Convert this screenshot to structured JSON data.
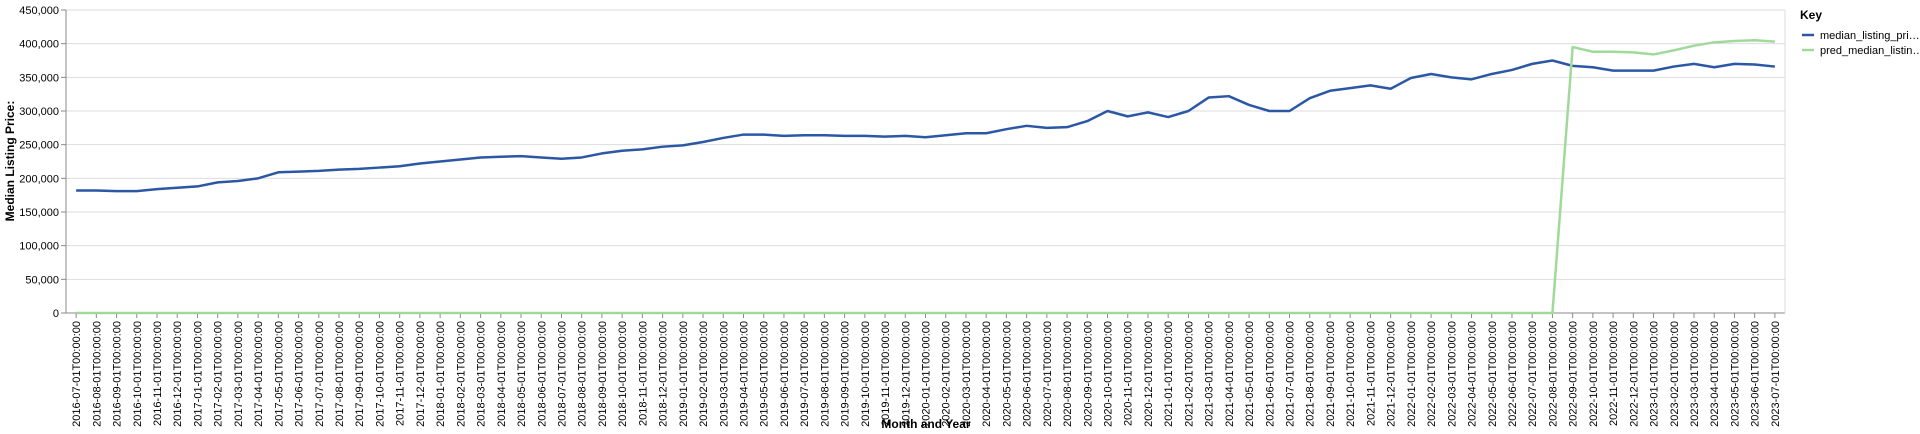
{
  "chart_data": {
    "type": "line",
    "xlabel": "Month and Year",
    "ylabel": "Median Listing Price:",
    "legend_title": "Key",
    "legend_position": "right",
    "grid": true,
    "categories": [
      "2016-07-01T00:00:00",
      "2016-08-01T00:00:00",
      "2016-09-01T00:00:00",
      "2016-10-01T00:00:00",
      "2016-11-01T00:00:00",
      "2016-12-01T00:00:00",
      "2017-01-01T00:00:00",
      "2017-02-01T00:00:00",
      "2017-03-01T00:00:00",
      "2017-04-01T00:00:00",
      "2017-05-01T00:00:00",
      "2017-06-01T00:00:00",
      "2017-07-01T00:00:00",
      "2017-08-01T00:00:00",
      "2017-09-01T00:00:00",
      "2017-10-01T00:00:00",
      "2017-11-01T00:00:00",
      "2017-12-01T00:00:00",
      "2018-01-01T00:00:00",
      "2018-02-01T00:00:00",
      "2018-03-01T00:00:00",
      "2018-04-01T00:00:00",
      "2018-05-01T00:00:00",
      "2018-06-01T00:00:00",
      "2018-07-01T00:00:00",
      "2018-08-01T00:00:00",
      "2018-09-01T00:00:00",
      "2018-10-01T00:00:00",
      "2018-11-01T00:00:00",
      "2018-12-01T00:00:00",
      "2019-01-01T00:00:00",
      "2019-02-01T00:00:00",
      "2019-03-01T00:00:00",
      "2019-04-01T00:00:00",
      "2019-05-01T00:00:00",
      "2019-06-01T00:00:00",
      "2019-07-01T00:00:00",
      "2019-08-01T00:00:00",
      "2019-09-01T00:00:00",
      "2019-10-01T00:00:00",
      "2019-11-01T00:00:00",
      "2019-12-01T00:00:00",
      "2020-01-01T00:00:00",
      "2020-02-01T00:00:00",
      "2020-03-01T00:00:00",
      "2020-04-01T00:00:00",
      "2020-05-01T00:00:00",
      "2020-06-01T00:00:00",
      "2020-07-01T00:00:00",
      "2020-08-01T00:00:00",
      "2020-09-01T00:00:00",
      "2020-10-01T00:00:00",
      "2020-11-01T00:00:00",
      "2020-12-01T00:00:00",
      "2021-01-01T00:00:00",
      "2021-02-01T00:00:00",
      "2021-03-01T00:00:00",
      "2021-04-01T00:00:00",
      "2021-05-01T00:00:00",
      "2021-06-01T00:00:00",
      "2021-07-01T00:00:00",
      "2021-08-01T00:00:00",
      "2021-09-01T00:00:00",
      "2021-10-01T00:00:00",
      "2021-11-01T00:00:00",
      "2021-12-01T00:00:00",
      "2022-01-01T00:00:00",
      "2022-02-01T00:00:00",
      "2022-03-01T00:00:00",
      "2022-04-01T00:00:00",
      "2022-05-01T00:00:00",
      "2022-06-01T00:00:00",
      "2022-07-01T00:00:00",
      "2022-08-01T00:00:00",
      "2022-09-01T00:00:00",
      "2022-10-01T00:00:00",
      "2022-11-01T00:00:00",
      "2022-12-01T00:00:00",
      "2023-01-01T00:00:00",
      "2023-02-01T00:00:00",
      "2023-03-01T00:00:00",
      "2023-04-01T00:00:00",
      "2023-05-01T00:00:00",
      "2023-06-01T00:00:00",
      "2023-07-01T00:00:00"
    ],
    "series": [
      {
        "name": "median_listing_pri…",
        "color": "#2b57a4",
        "values": [
          182000,
          182000,
          181000,
          181000,
          184000,
          186000,
          188000,
          194000,
          196000,
          200000,
          209000,
          210000,
          211000,
          213000,
          214000,
          216000,
          218000,
          222000,
          225000,
          228000,
          231000,
          232000,
          233000,
          231000,
          229000,
          231000,
          237000,
          241000,
          243000,
          247000,
          249000,
          254000,
          260000,
          265000,
          265000,
          263000,
          264000,
          264000,
          263000,
          263000,
          262000,
          263000,
          261000,
          264000,
          267000,
          267000,
          273000,
          278000,
          275000,
          276000,
          285000,
          300000,
          292000,
          298000,
          291000,
          300000,
          320000,
          322000,
          309000,
          300000,
          300000,
          319000,
          330000,
          334000,
          338000,
          333000,
          349000,
          355000,
          350000,
          347000,
          355000,
          361000,
          370000,
          375000,
          367000,
          365000,
          360000,
          360000,
          360000,
          366000,
          370000,
          365000,
          370000,
          369000,
          366000
        ]
      },
      {
        "name": "pred_median_listin…",
        "color": "#a1d99b",
        "values": [
          0,
          0,
          0,
          0,
          0,
          0,
          0,
          0,
          0,
          0,
          0,
          0,
          0,
          0,
          0,
          0,
          0,
          0,
          0,
          0,
          0,
          0,
          0,
          0,
          0,
          0,
          0,
          0,
          0,
          0,
          0,
          0,
          0,
          0,
          0,
          0,
          0,
          0,
          0,
          0,
          0,
          0,
          0,
          0,
          0,
          0,
          0,
          0,
          0,
          0,
          0,
          0,
          0,
          0,
          0,
          0,
          0,
          0,
          0,
          0,
          0,
          0,
          0,
          0,
          0,
          0,
          0,
          0,
          0,
          0,
          0,
          0,
          0,
          0,
          395000,
          388000,
          388000,
          387000,
          384000,
          390000,
          397000,
          402000,
          404000,
          405000,
          403000
        ]
      }
    ],
    "ylim": [
      0,
      450000
    ],
    "yticks": [
      0,
      {
        "value": 50000,
        "label": "50,000"
      },
      {
        "value": 100000,
        "label": "100,000"
      },
      {
        "value": 150000,
        "label": "150,000"
      },
      {
        "value": 200000,
        "label": "200,000"
      },
      {
        "value": 250000,
        "label": "250,000"
      },
      {
        "value": 300000,
        "label": "300,000"
      },
      {
        "value": 350000,
        "label": "350,000"
      },
      {
        "value": 400000,
        "label": "400,000"
      },
      {
        "value": 450000,
        "label": "450,000"
      }
    ]
  }
}
